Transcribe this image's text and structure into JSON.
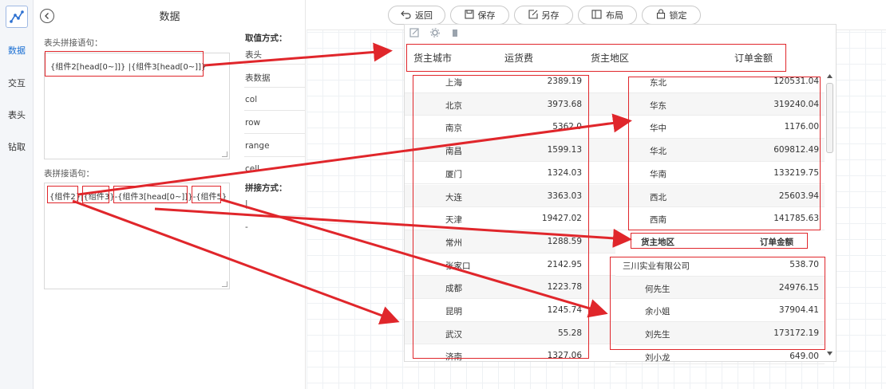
{
  "nav": {
    "items": [
      "数据",
      "交互",
      "表头",
      "钻取"
    ],
    "active_index": 0
  },
  "panel": {
    "title": "数据",
    "header_label": "表头拼接语句：",
    "header_expr": "{组件2[head[0~]]} |{组件3[head[0~]]}",
    "table_label": "表拼接语句：",
    "table_expr": "{组件2}|{组件3}-{组件3[head[0~]]}-{组件5}",
    "expr_tokens": [
      "{组件2}",
      "|",
      "{组件3}",
      "-",
      "{组件3[head[0~]]}",
      "-",
      "{组件5}"
    ],
    "value_mode_label": "取值方式：",
    "value_modes": [
      "表头",
      "表数据",
      "col",
      "row",
      "range",
      "cell"
    ],
    "join_mode_label": "拼接方式：",
    "join_modes": [
      "|",
      "-"
    ]
  },
  "toolbar": {
    "buttons": [
      {
        "label": "返回",
        "icon": "return-icon"
      },
      {
        "label": "保存",
        "icon": "save-icon"
      },
      {
        "label": "另存",
        "icon": "save-as-icon"
      },
      {
        "label": "布局",
        "icon": "layout-icon"
      },
      {
        "label": "锁定",
        "icon": "lock-icon"
      }
    ]
  },
  "table": {
    "headers": [
      "货主城市",
      "运货费",
      "货主地区",
      "订单金额"
    ],
    "cities": [
      {
        "city": "上海",
        "fee": "2389.19"
      },
      {
        "city": "北京",
        "fee": "3973.68"
      },
      {
        "city": "南京",
        "fee": "5362.0"
      },
      {
        "city": "南昌",
        "fee": "1599.13"
      },
      {
        "city": "厦门",
        "fee": "1324.03"
      },
      {
        "city": "大连",
        "fee": "3363.03"
      },
      {
        "city": "天津",
        "fee": "19427.02"
      },
      {
        "city": "常州",
        "fee": "1288.59"
      },
      {
        "city": "张家口",
        "fee": "2142.95"
      },
      {
        "city": "成都",
        "fee": "1223.78"
      },
      {
        "city": "昆明",
        "fee": "1245.74"
      },
      {
        "city": "武汉",
        "fee": "55.28"
      },
      {
        "city": "济南",
        "fee": "1327.06"
      }
    ],
    "regions": [
      {
        "region": "东北",
        "amount": "120531.04"
      },
      {
        "region": "华东",
        "amount": "319240.04"
      },
      {
        "region": "华中",
        "amount": "1176.00"
      },
      {
        "region": "华北",
        "amount": "609812.49"
      },
      {
        "region": "华南",
        "amount": "133219.75"
      },
      {
        "region": "西北",
        "amount": "25603.94"
      },
      {
        "region": "西南",
        "amount": "141785.63"
      }
    ],
    "sub_header": [
      "货主地区",
      "订单金额"
    ],
    "customers": [
      {
        "name": "三川实业有限公司",
        "amount": "538.70"
      },
      {
        "name": "何先生",
        "amount": "24976.15"
      },
      {
        "name": "余小姐",
        "amount": "37904.41"
      },
      {
        "name": "刘先生",
        "amount": "173172.19"
      },
      {
        "name": "刘小龙",
        "amount": "649.00"
      }
    ]
  },
  "colors": {
    "accent": "#1a6fd3",
    "annotation": "#e0262b"
  }
}
